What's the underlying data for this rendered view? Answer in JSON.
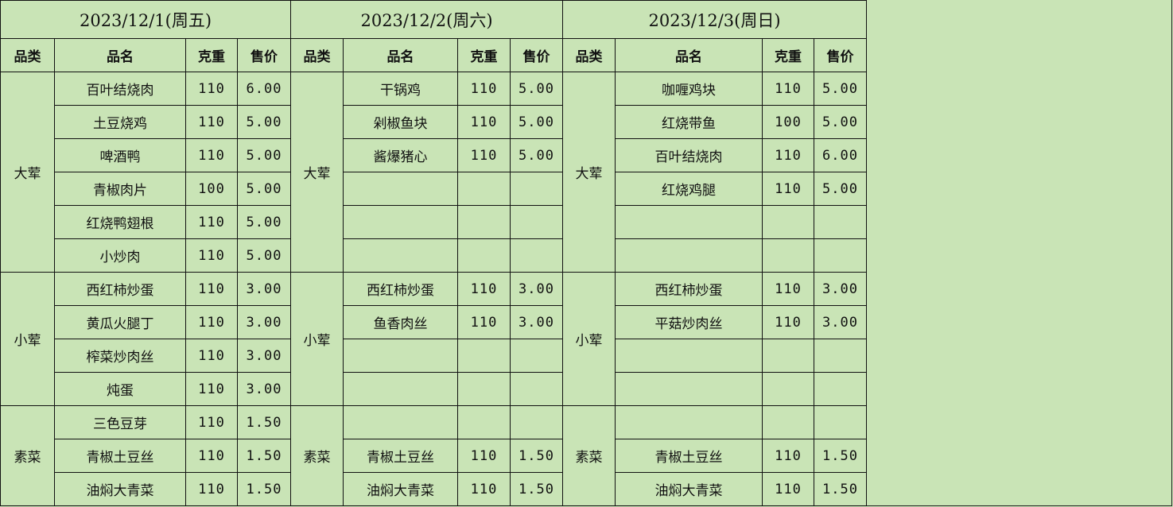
{
  "headers": {
    "category": "品类",
    "name": "品名",
    "weight": "克重",
    "price": "售价"
  },
  "colors": {
    "background": "#c9e4b6",
    "grid": "#111111"
  },
  "days": [
    {
      "title": "2023/12/1(周五)",
      "groups": [
        {
          "category": "大荤",
          "items": [
            {
              "name": "百叶结烧肉",
              "weight": "110",
              "price": "6.00"
            },
            {
              "name": "土豆烧鸡",
              "weight": "110",
              "price": "5.00"
            },
            {
              "name": "啤酒鸭",
              "weight": "110",
              "price": "5.00"
            },
            {
              "name": "青椒肉片",
              "weight": "100",
              "price": "5.00"
            },
            {
              "name": "红烧鸭翅根",
              "weight": "110",
              "price": "5.00"
            },
            {
              "name": "小炒肉",
              "weight": "110",
              "price": "5.00"
            }
          ]
        },
        {
          "category": "小荤",
          "items": [
            {
              "name": "西红柿炒蛋",
              "weight": "110",
              "price": "3.00"
            },
            {
              "name": "黄瓜火腿丁",
              "weight": "110",
              "price": "3.00"
            },
            {
              "name": "榨菜炒肉丝",
              "weight": "110",
              "price": "3.00"
            },
            {
              "name": "炖蛋",
              "weight": "110",
              "price": "3.00"
            }
          ]
        },
        {
          "category": "素菜",
          "items": [
            {
              "name": "三色豆芽",
              "weight": "110",
              "price": "1.50"
            },
            {
              "name": "青椒土豆丝",
              "weight": "110",
              "price": "1.50"
            },
            {
              "name": "油焖大青菜",
              "weight": "110",
              "price": "1.50"
            }
          ]
        }
      ]
    },
    {
      "title": "2023/12/2(周六)",
      "groups": [
        {
          "category": "大荤",
          "items": [
            {
              "name": "干锅鸡",
              "weight": "110",
              "price": "5.00"
            },
            {
              "name": "剁椒鱼块",
              "weight": "110",
              "price": "5.00"
            },
            {
              "name": "酱爆猪心",
              "weight": "110",
              "price": "5.00"
            },
            {
              "name": "",
              "weight": "",
              "price": ""
            },
            {
              "name": "",
              "weight": "",
              "price": ""
            },
            {
              "name": "",
              "weight": "",
              "price": ""
            }
          ]
        },
        {
          "category": "小荤",
          "items": [
            {
              "name": "西红柿炒蛋",
              "weight": "110",
              "price": "3.00"
            },
            {
              "name": "鱼香肉丝",
              "weight": "110",
              "price": "3.00"
            },
            {
              "name": "",
              "weight": "",
              "price": ""
            },
            {
              "name": "",
              "weight": "",
              "price": ""
            }
          ]
        },
        {
          "category": "素菜",
          "items": [
            {
              "name": "",
              "weight": "",
              "price": ""
            },
            {
              "name": "青椒土豆丝",
              "weight": "110",
              "price": "1.50"
            },
            {
              "name": "油焖大青菜",
              "weight": "110",
              "price": "1.50"
            }
          ]
        }
      ]
    },
    {
      "title": "2023/12/3(周日)",
      "groups": [
        {
          "category": "大荤",
          "items": [
            {
              "name": "咖喱鸡块",
              "weight": "110",
              "price": "5.00"
            },
            {
              "name": "红烧带鱼",
              "weight": "100",
              "price": "5.00"
            },
            {
              "name": "百叶结烧肉",
              "weight": "110",
              "price": "6.00"
            },
            {
              "name": "红烧鸡腿",
              "weight": "110",
              "price": "5.00"
            },
            {
              "name": "",
              "weight": "",
              "price": ""
            },
            {
              "name": "",
              "weight": "",
              "price": ""
            }
          ]
        },
        {
          "category": "小荤",
          "items": [
            {
              "name": "西红柿炒蛋",
              "weight": "110",
              "price": "3.00"
            },
            {
              "name": "平菇炒肉丝",
              "weight": "110",
              "price": "3.00"
            },
            {
              "name": "",
              "weight": "",
              "price": ""
            },
            {
              "name": "",
              "weight": "",
              "price": ""
            }
          ]
        },
        {
          "category": "素菜",
          "items": [
            {
              "name": "",
              "weight": "",
              "price": ""
            },
            {
              "name": "青椒土豆丝",
              "weight": "110",
              "price": "1.50"
            },
            {
              "name": "油焖大青菜",
              "weight": "110",
              "price": "1.50"
            }
          ]
        }
      ]
    }
  ]
}
